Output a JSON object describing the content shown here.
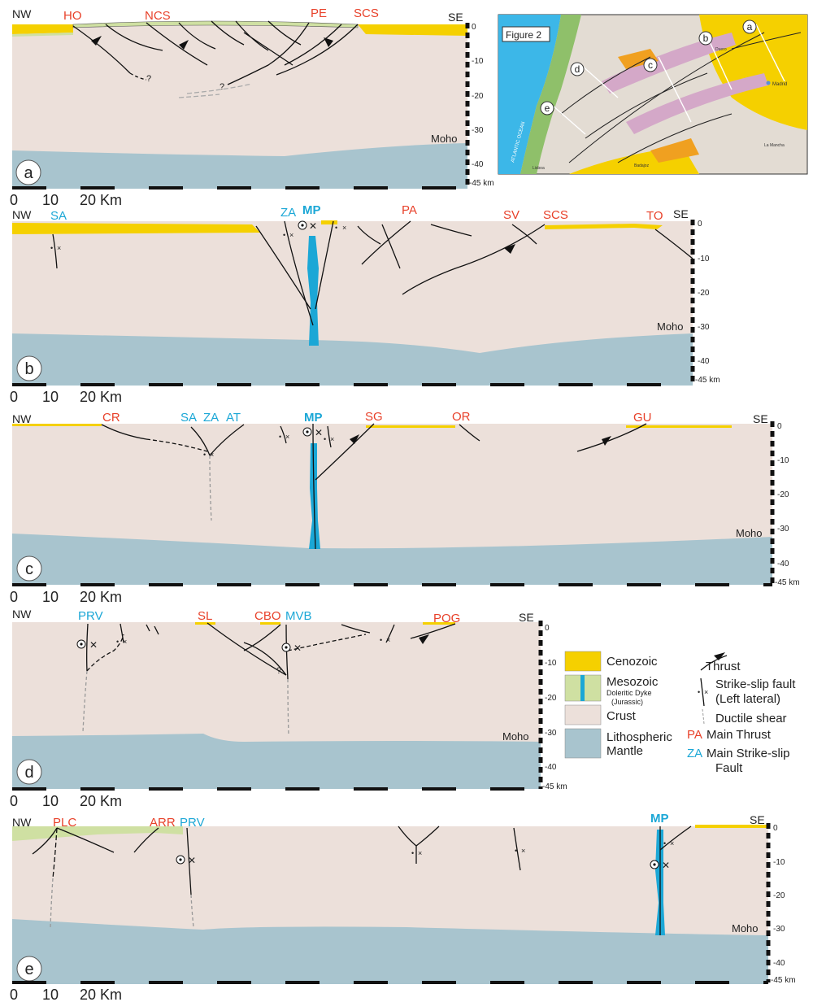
{
  "sections": [
    {
      "panel_letter": "a",
      "nw": "NW",
      "se": "SE",
      "labels": [
        {
          "text": "HO",
          "kind": "thrust"
        },
        {
          "text": "NCS",
          "kind": "thrust"
        },
        {
          "text": "PE",
          "kind": "thrust"
        },
        {
          "text": "SCS",
          "kind": "thrust"
        }
      ],
      "moho": "Moho",
      "depth_ticks": [
        "0",
        "-10",
        "-20",
        "-30",
        "-40",
        "-45 km"
      ],
      "scale": {
        "zero": "0",
        "ten": "10",
        "twenty": "20 Km"
      }
    },
    {
      "panel_letter": "b",
      "nw": "NW",
      "se": "SE",
      "labels": [
        {
          "text": "SA",
          "kind": "strike-slip"
        },
        {
          "text": "ZA",
          "kind": "strike-slip"
        },
        {
          "text": "MP",
          "kind": "main-fault"
        },
        {
          "text": "PA",
          "kind": "thrust"
        },
        {
          "text": "SV",
          "kind": "thrust"
        },
        {
          "text": "SCS",
          "kind": "thrust"
        },
        {
          "text": "TO",
          "kind": "thrust"
        }
      ],
      "moho": "Moho",
      "depth_ticks": [
        "0",
        "-10",
        "-20",
        "-30",
        "-40",
        "-45 km"
      ],
      "scale": {
        "zero": "0",
        "ten": "10",
        "twenty": "20 Km"
      }
    },
    {
      "panel_letter": "c",
      "nw": "NW",
      "se": "SE",
      "labels": [
        {
          "text": "CR",
          "kind": "thrust"
        },
        {
          "text": "SA",
          "kind": "strike-slip"
        },
        {
          "text": "ZA",
          "kind": "strike-slip"
        },
        {
          "text": "AT",
          "kind": "strike-slip"
        },
        {
          "text": "MP",
          "kind": "main-fault"
        },
        {
          "text": "SG",
          "kind": "thrust"
        },
        {
          "text": "OR",
          "kind": "thrust"
        },
        {
          "text": "GU",
          "kind": "thrust"
        }
      ],
      "moho": "Moho",
      "depth_ticks": [
        "0",
        "-10",
        "-20",
        "-30",
        "-40",
        "-45 km"
      ],
      "scale": {
        "zero": "0",
        "ten": "10",
        "twenty": "20 Km"
      }
    },
    {
      "panel_letter": "d",
      "nw": "NW",
      "se": "SE",
      "labels": [
        {
          "text": "PRV",
          "kind": "strike-slip"
        },
        {
          "text": "SL",
          "kind": "thrust"
        },
        {
          "text": "CBO",
          "kind": "thrust"
        },
        {
          "text": "MVB",
          "kind": "strike-slip"
        },
        {
          "text": "POG",
          "kind": "thrust"
        }
      ],
      "moho": "Moho",
      "depth_ticks": [
        "0",
        "-10",
        "-20",
        "-30",
        "-40",
        "-45 km"
      ],
      "scale": {
        "zero": "0",
        "ten": "10",
        "twenty": "20 Km"
      }
    },
    {
      "panel_letter": "e",
      "nw": "NW",
      "se": "SE",
      "labels": [
        {
          "text": "PLC",
          "kind": "thrust"
        },
        {
          "text": "ARR",
          "kind": "thrust"
        },
        {
          "text": "PRV",
          "kind": "strike-slip"
        },
        {
          "text": "MP",
          "kind": "main-fault"
        }
      ],
      "moho": "Moho",
      "depth_ticks": [
        "0",
        "-10",
        "-20",
        "-30",
        "-40",
        "-45 km"
      ],
      "scale": {
        "zero": "0",
        "ten": "10",
        "twenty": "20 Km"
      }
    }
  ],
  "inset_map": {
    "title": "Figure 2",
    "section_letters": [
      "a",
      "b",
      "c",
      "d",
      "e"
    ],
    "place_labels": [
      "Madrid",
      "ATLANTIC OCEAN",
      "Lisboa",
      "Duero",
      "Badajoz",
      "La Mancha"
    ]
  },
  "legend": {
    "items": [
      {
        "label": "Cenozoic",
        "color": "#f5d000"
      },
      {
        "label": "Mesozoic",
        "sublabel": "Doleritic Dyke",
        "sublabel2": "(Jurassic)",
        "color": "#cfe0a2"
      },
      {
        "label": "Crust",
        "color": "#ece0da"
      },
      {
        "label": "Lithospheric",
        "label2": "Mantle",
        "color": "#a8c4ce"
      }
    ],
    "symbols": [
      {
        "label": "Thrust"
      },
      {
        "label": "Strike-slip fault",
        "label2": "(Left lateral)"
      },
      {
        "label": "Ductile shear"
      },
      {
        "abbr": "PA",
        "label": "Main Thrust"
      },
      {
        "abbr": "ZA",
        "label": "Main Strike-slip",
        "label2": "Fault"
      }
    ]
  },
  "colors": {
    "cenozoic": "#f5d000",
    "mesozoic": "#cfe0a2",
    "crust": "#ece0da",
    "mantle": "#a8c4ce",
    "dyke": "#1ba7d6",
    "thrust_label": "#e8412a",
    "strike_label": "#1ba7d6"
  }
}
